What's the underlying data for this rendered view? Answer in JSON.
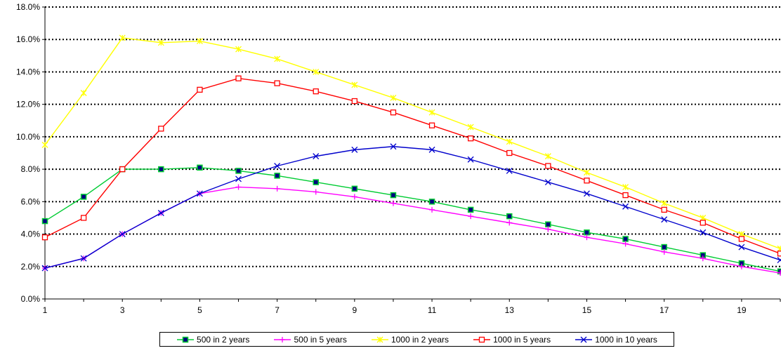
{
  "chart_data": {
    "type": "line",
    "title": "",
    "xlabel": "",
    "ylabel": "",
    "x": [
      1,
      2,
      3,
      4,
      5,
      6,
      7,
      8,
      9,
      10,
      11,
      12,
      13,
      14,
      15,
      16,
      17,
      18,
      19,
      20
    ],
    "x_tick_labels": [
      "1",
      "3",
      "5",
      "7",
      "9",
      "11",
      "13",
      "15",
      "17",
      "19"
    ],
    "y_tick_labels": [
      "0.0%",
      "2.0%",
      "4.0%",
      "6.0%",
      "8.0%",
      "10.0%",
      "12.0%",
      "14.0%",
      "16.0%",
      "18.0%"
    ],
    "ylim": [
      0,
      18
    ],
    "grid": "horizontal dotted",
    "legend_position": "bottom",
    "series": [
      {
        "name": "500 in 2 years",
        "color": "#00cc33",
        "marker": "filled-square",
        "values": [
          4.8,
          6.3,
          8.0,
          8.0,
          8.1,
          7.9,
          7.6,
          7.2,
          6.8,
          6.4,
          6.0,
          5.5,
          5.1,
          4.6,
          4.1,
          3.7,
          3.2,
          2.7,
          2.2,
          1.7
        ]
      },
      {
        "name": "500 in 5 years",
        "color": "#ff00ff",
        "marker": "plus",
        "values": [
          1.9,
          2.5,
          4.0,
          5.3,
          6.5,
          6.9,
          6.8,
          6.6,
          6.3,
          5.9,
          5.5,
          5.1,
          4.7,
          4.3,
          3.8,
          3.4,
          2.9,
          2.5,
          2.0,
          1.6
        ]
      },
      {
        "name": "1000 in 2 years",
        "color": "#ffff00",
        "marker": "star",
        "values": [
          9.5,
          12.7,
          16.1,
          15.8,
          15.9,
          15.4,
          14.8,
          14.0,
          13.2,
          12.4,
          11.5,
          10.6,
          9.7,
          8.8,
          7.8,
          6.9,
          5.9,
          5.0,
          4.0,
          3.1
        ]
      },
      {
        "name": "1000 in 5 years",
        "color": "#ff0000",
        "marker": "open-square",
        "values": [
          3.8,
          5.0,
          8.0,
          10.5,
          12.9,
          13.6,
          13.3,
          12.8,
          12.2,
          11.5,
          10.7,
          9.9,
          9.0,
          8.2,
          7.3,
          6.4,
          5.5,
          4.7,
          3.7,
          2.8
        ]
      },
      {
        "name": "1000 in 10 years",
        "color": "#0000cc",
        "marker": "x",
        "values": [
          1.9,
          2.5,
          4.0,
          5.3,
          6.5,
          7.4,
          8.2,
          8.8,
          9.2,
          9.4,
          9.2,
          8.6,
          7.9,
          7.2,
          6.5,
          5.7,
          4.9,
          4.1,
          3.2,
          2.4
        ]
      }
    ]
  }
}
